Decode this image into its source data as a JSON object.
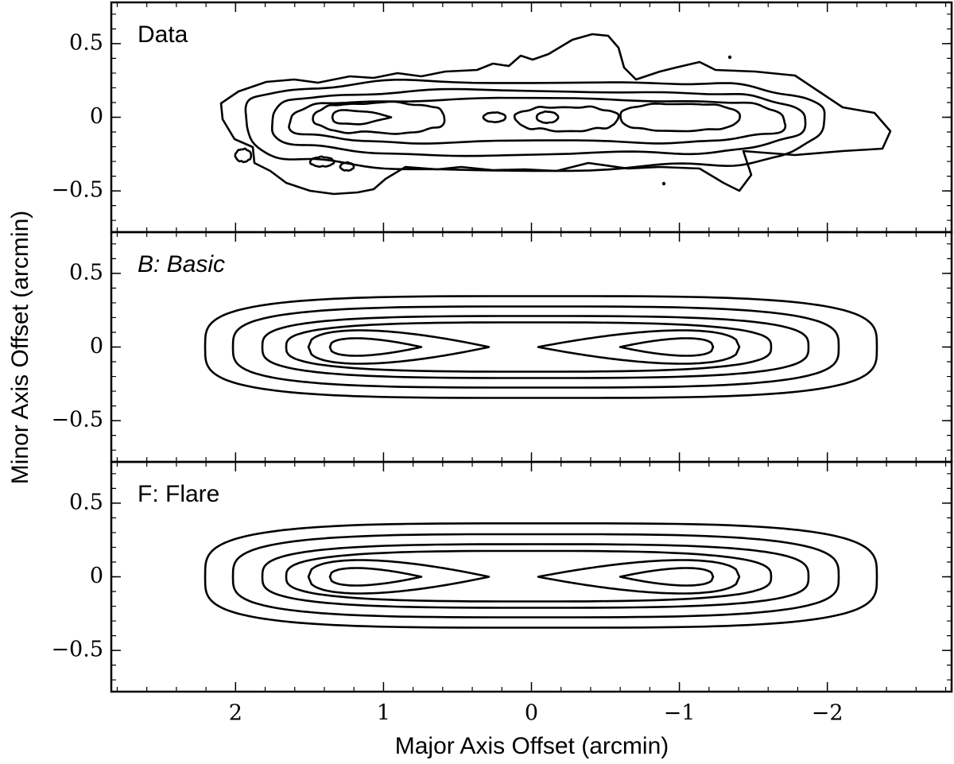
{
  "chart_data": [
    {
      "type": "contour",
      "title": "Data",
      "ylim": [
        -0.78,
        0.78
      ],
      "yticks": [
        {
          "value": -0.5,
          "label": "−0.5"
        },
        0,
        0.5
      ]
    },
    {
      "type": "contour",
      "title": "B: Basic",
      "ylim": [
        -0.78,
        0.78
      ],
      "yticks": [
        {
          "value": -0.5,
          "label": "−0.5"
        },
        0,
        0.5
      ]
    },
    {
      "type": "contour",
      "title": "F: Flare",
      "ylim": [
        -0.78,
        0.78
      ],
      "yticks": [
        {
          "value": -0.5,
          "label": "−0.5"
        },
        0,
        0.5
      ]
    }
  ],
  "xlim": [
    2.84,
    -2.84
  ],
  "xticks": [
    2,
    1,
    0,
    {
      "value": -1,
      "label": "−1"
    },
    {
      "value": -2,
      "label": "−2"
    }
  ],
  "xlabel": "Major Axis Offset (arcmin)",
  "ylabel": "Minor Axis Offset (arcmin)"
}
